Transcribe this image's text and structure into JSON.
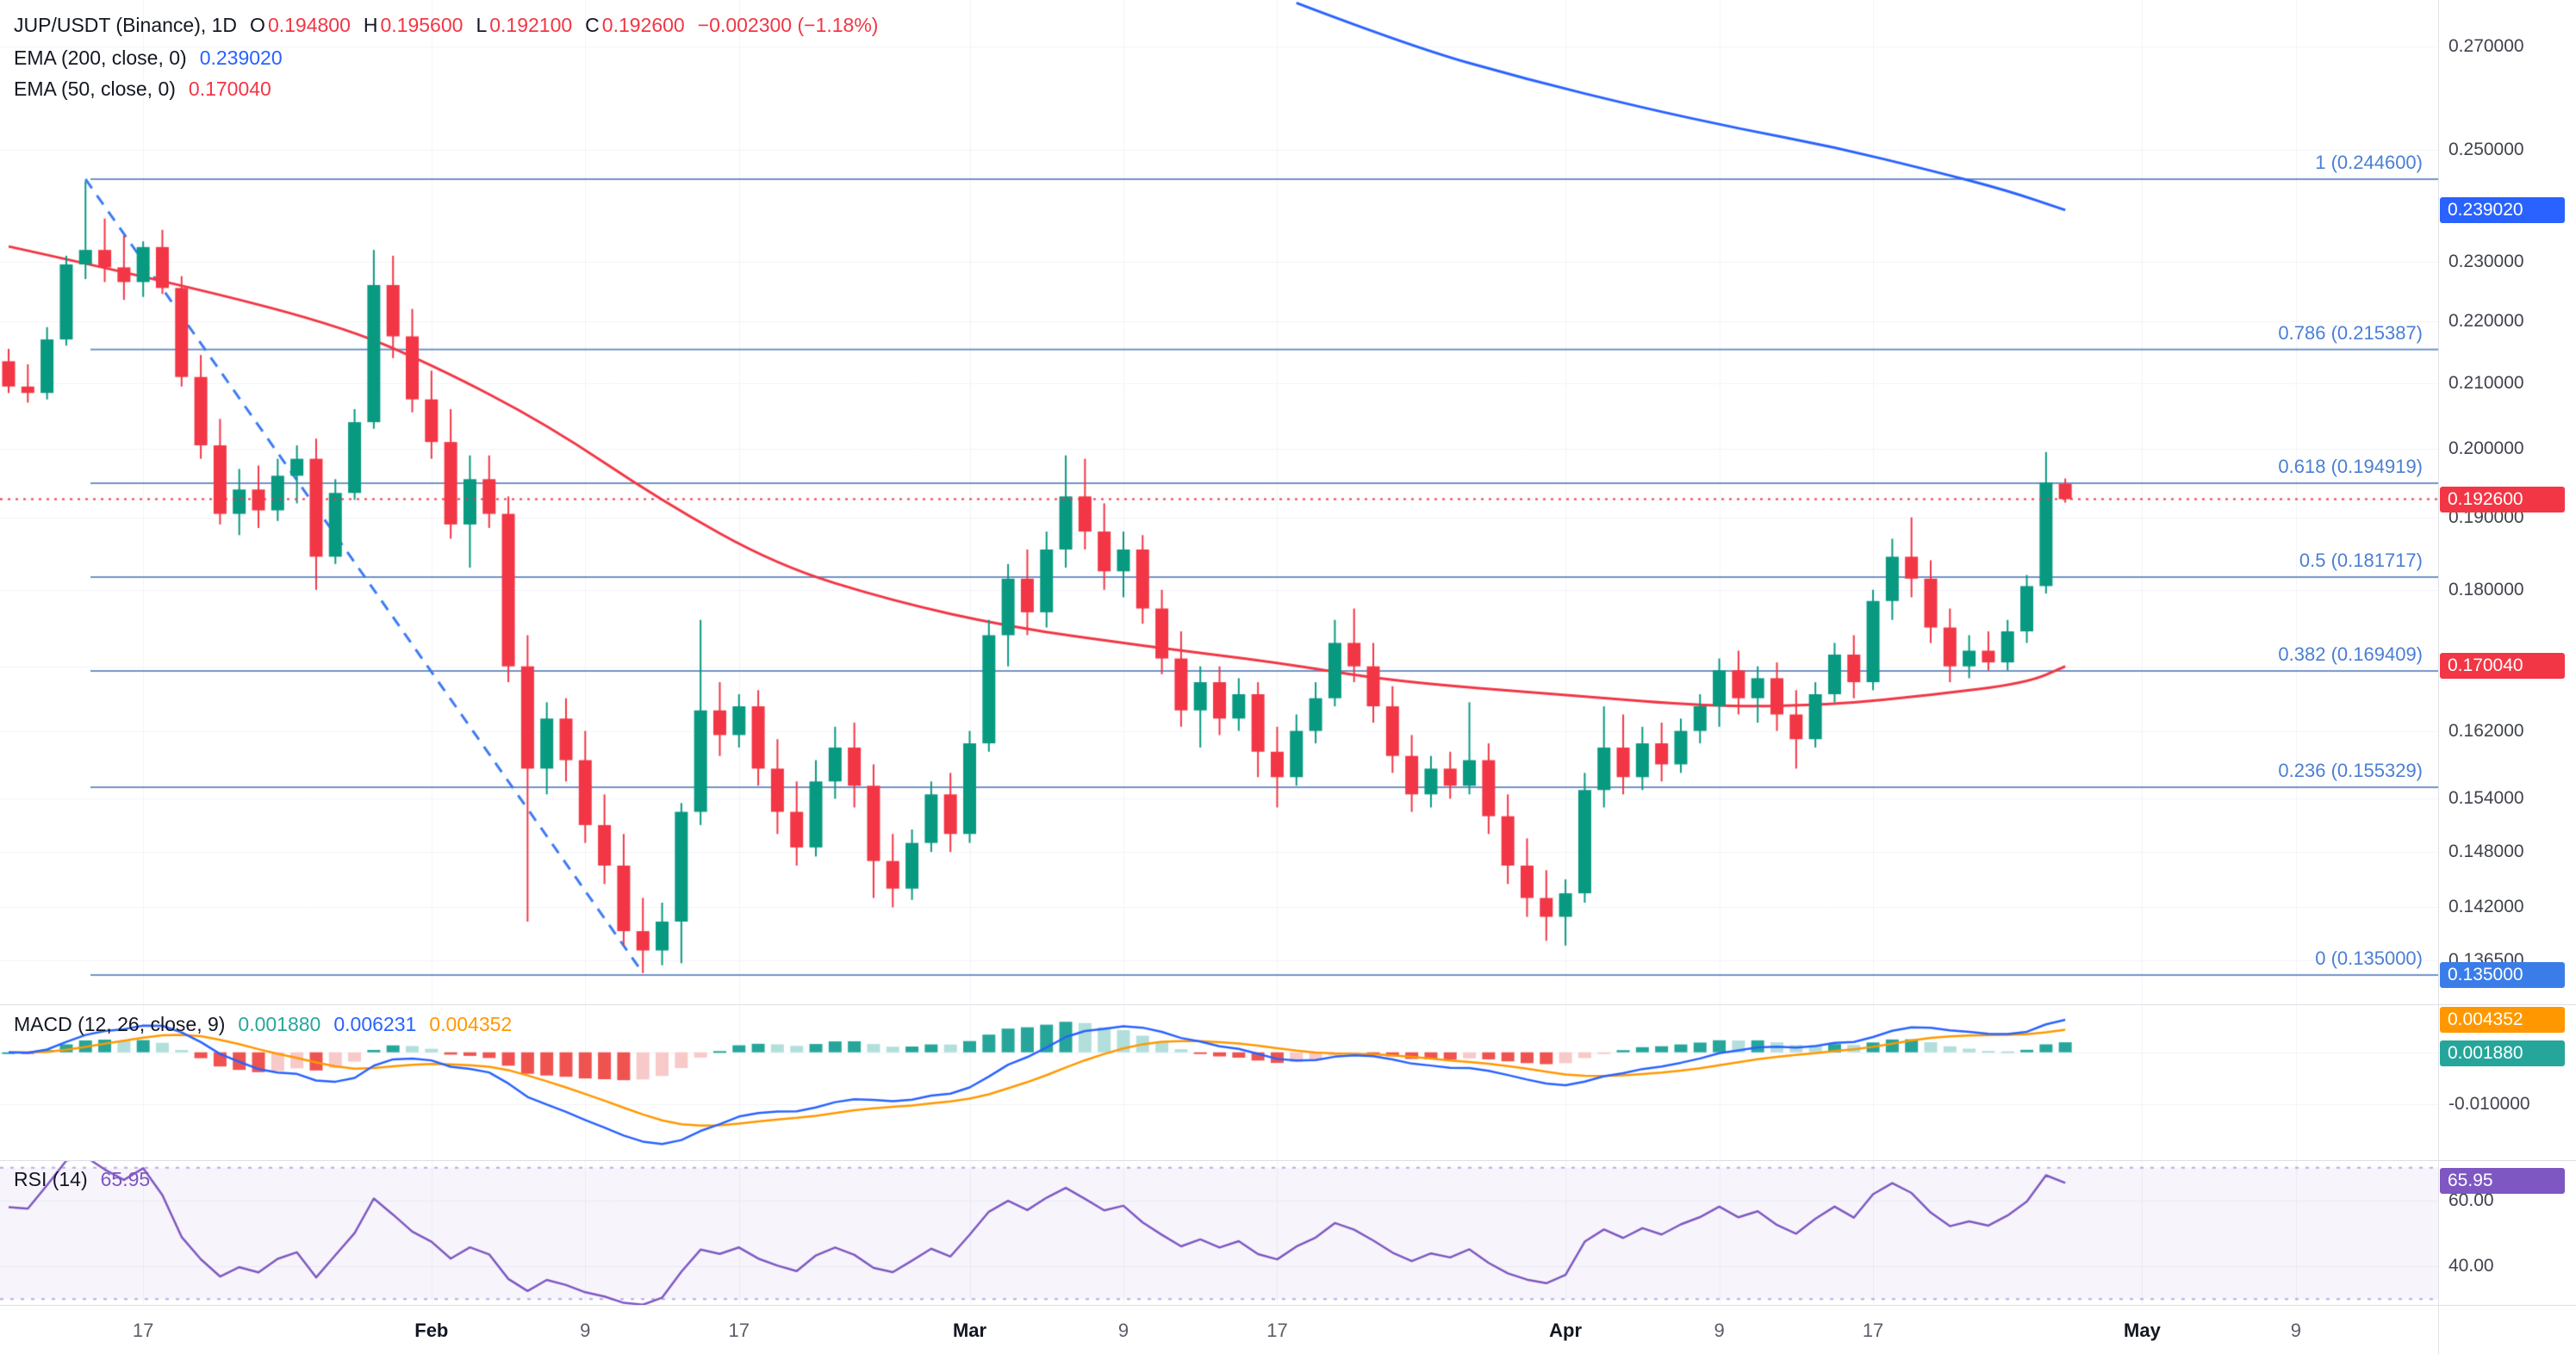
{
  "header": {
    "title": "JUP/USDT (Binance), 1D",
    "ohlc": {
      "o_label": "O",
      "o": "0.194800",
      "h_label": "H",
      "h": "0.195600",
      "l_label": "L",
      "l": "0.192100",
      "c_label": "C",
      "c": "0.192600",
      "change": "−0.002300 (−1.18%)"
    },
    "ema200_label": "EMA (200, close, 0)",
    "ema200_value": "0.239020",
    "ema50_label": "EMA (50, close, 0)",
    "ema50_value": "0.170040"
  },
  "macd_legend": {
    "label": "MACD (12, 26, close, 9)",
    "hist": "0.001880",
    "macd": "0.006231",
    "signal": "0.004352"
  },
  "rsi_legend": {
    "label": "RSI (14)",
    "value": "65.95"
  },
  "colors": {
    "up": "#089981",
    "down": "#f23645",
    "ema200": "#2962ff",
    "ema50": "#f23645",
    "fib": "#7193c7",
    "fib_label": "#4a7fd4",
    "trendline": "#3d7bf0",
    "macd_line": "#2962ff",
    "signal_line": "#ff9800",
    "hist_up": "#26a69a",
    "hist_up_weak": "#b2dfdb",
    "hist_down": "#ef5350",
    "hist_down_weak": "#f8c9c9",
    "rsi": "#7e57c2",
    "rsi_band_fill": "rgba(126,87,194,0.06)",
    "rsi_band_line": "rgba(126,87,194,0.5)",
    "grid": "#f0f3fa"
  },
  "chart_data": {
    "type": "candlestick",
    "symbol": "JUP/USDT",
    "exchange": "Binance",
    "interval": "1D",
    "ohlc": [
      [
        0.2135,
        0.2155,
        0.2085,
        0.2095
      ],
      [
        0.2095,
        0.213,
        0.207,
        0.2085
      ],
      [
        0.2085,
        0.219,
        0.2075,
        0.217
      ],
      [
        0.217,
        0.231,
        0.216,
        0.2295
      ],
      [
        0.2295,
        0.2442,
        0.227,
        0.232
      ],
      [
        0.232,
        0.2375,
        0.2265,
        0.229
      ],
      [
        0.229,
        0.2345,
        0.2235,
        0.2265
      ],
      [
        0.2265,
        0.2335,
        0.224,
        0.2325
      ],
      [
        0.2325,
        0.2355,
        0.2245,
        0.2255
      ],
      [
        0.2255,
        0.2275,
        0.2095,
        0.211
      ],
      [
        0.211,
        0.2145,
        0.1985,
        0.2005
      ],
      [
        0.2005,
        0.2045,
        0.189,
        0.1905
      ],
      [
        0.1905,
        0.197,
        0.1875,
        0.194
      ],
      [
        0.194,
        0.1975,
        0.1885,
        0.191
      ],
      [
        0.191,
        0.1985,
        0.1895,
        0.196
      ],
      [
        0.196,
        0.2005,
        0.192,
        0.1985
      ],
      [
        0.1985,
        0.2015,
        0.18,
        0.1845
      ],
      [
        0.1845,
        0.1955,
        0.1835,
        0.1935
      ],
      [
        0.1935,
        0.206,
        0.1925,
        0.204
      ],
      [
        0.204,
        0.232,
        0.203,
        0.226
      ],
      [
        0.226,
        0.231,
        0.214,
        0.2175
      ],
      [
        0.2175,
        0.222,
        0.2055,
        0.2075
      ],
      [
        0.2075,
        0.212,
        0.1985,
        0.201
      ],
      [
        0.201,
        0.206,
        0.187,
        0.189
      ],
      [
        0.189,
        0.199,
        0.183,
        0.1955
      ],
      [
        0.1955,
        0.199,
        0.1885,
        0.1905
      ],
      [
        0.1905,
        0.193,
        0.168,
        0.17
      ],
      [
        0.17,
        0.174,
        0.1405,
        0.1575
      ],
      [
        0.1575,
        0.1655,
        0.1545,
        0.1635
      ],
      [
        0.1635,
        0.166,
        0.156,
        0.1585
      ],
      [
        0.1585,
        0.162,
        0.149,
        0.151
      ],
      [
        0.151,
        0.1545,
        0.1445,
        0.1465
      ],
      [
        0.1465,
        0.15,
        0.138,
        0.1395
      ],
      [
        0.1395,
        0.143,
        0.1352,
        0.1375
      ],
      [
        0.1375,
        0.1425,
        0.136,
        0.1405
      ],
      [
        0.1405,
        0.1535,
        0.1362,
        0.1525
      ],
      [
        0.1525,
        0.176,
        0.151,
        0.1645
      ],
      [
        0.1645,
        0.168,
        0.159,
        0.1615
      ],
      [
        0.1615,
        0.1665,
        0.16,
        0.165
      ],
      [
        0.165,
        0.167,
        0.1555,
        0.1575
      ],
      [
        0.1575,
        0.161,
        0.15,
        0.1525
      ],
      [
        0.1525,
        0.156,
        0.1465,
        0.1485
      ],
      [
        0.1485,
        0.1585,
        0.1475,
        0.156
      ],
      [
        0.156,
        0.1625,
        0.154,
        0.16
      ],
      [
        0.16,
        0.163,
        0.153,
        0.1555
      ],
      [
        0.1555,
        0.158,
        0.143,
        0.147
      ],
      [
        0.147,
        0.15,
        0.142,
        0.144
      ],
      [
        0.144,
        0.1505,
        0.1428,
        0.149
      ],
      [
        0.149,
        0.156,
        0.148,
        0.1545
      ],
      [
        0.1545,
        0.157,
        0.148,
        0.15
      ],
      [
        0.15,
        0.162,
        0.149,
        0.1605
      ],
      [
        0.1605,
        0.176,
        0.1595,
        0.174
      ],
      [
        0.174,
        0.1835,
        0.17,
        0.1815
      ],
      [
        0.1815,
        0.1855,
        0.174,
        0.177
      ],
      [
        0.177,
        0.188,
        0.175,
        0.1855
      ],
      [
        0.1855,
        0.199,
        0.183,
        0.193
      ],
      [
        0.193,
        0.1985,
        0.1855,
        0.188
      ],
      [
        0.188,
        0.192,
        0.18,
        0.1825
      ],
      [
        0.1825,
        0.188,
        0.179,
        0.1855
      ],
      [
        0.1855,
        0.1875,
        0.1755,
        0.1775
      ],
      [
        0.1775,
        0.18,
        0.169,
        0.171
      ],
      [
        0.171,
        0.1745,
        0.1625,
        0.1645
      ],
      [
        0.1645,
        0.17,
        0.16,
        0.168
      ],
      [
        0.168,
        0.17,
        0.1615,
        0.1635
      ],
      [
        0.1635,
        0.1685,
        0.162,
        0.1665
      ],
      [
        0.1665,
        0.168,
        0.1565,
        0.1595
      ],
      [
        0.1595,
        0.1625,
        0.153,
        0.1565
      ],
      [
        0.1565,
        0.164,
        0.1555,
        0.162
      ],
      [
        0.162,
        0.168,
        0.1605,
        0.166
      ],
      [
        0.166,
        0.176,
        0.165,
        0.173
      ],
      [
        0.173,
        0.1775,
        0.168,
        0.17
      ],
      [
        0.17,
        0.173,
        0.163,
        0.165
      ],
      [
        0.165,
        0.1675,
        0.157,
        0.159
      ],
      [
        0.159,
        0.1615,
        0.1525,
        0.1545
      ],
      [
        0.1545,
        0.159,
        0.153,
        0.1575
      ],
      [
        0.1575,
        0.1595,
        0.154,
        0.1555
      ],
      [
        0.1555,
        0.1655,
        0.1545,
        0.1585
      ],
      [
        0.1585,
        0.1605,
        0.15,
        0.152
      ],
      [
        0.152,
        0.1545,
        0.1445,
        0.1465
      ],
      [
        0.1465,
        0.1495,
        0.141,
        0.143
      ],
      [
        0.143,
        0.146,
        0.1385,
        0.141
      ],
      [
        0.141,
        0.145,
        0.138,
        0.1435
      ],
      [
        0.1435,
        0.157,
        0.1425,
        0.155
      ],
      [
        0.155,
        0.165,
        0.153,
        0.16
      ],
      [
        0.16,
        0.164,
        0.1545,
        0.1565
      ],
      [
        0.1565,
        0.1625,
        0.155,
        0.1605
      ],
      [
        0.1605,
        0.163,
        0.156,
        0.158
      ],
      [
        0.158,
        0.1635,
        0.157,
        0.162
      ],
      [
        0.162,
        0.1665,
        0.1605,
        0.165
      ],
      [
        0.165,
        0.171,
        0.1625,
        0.1695
      ],
      [
        0.1695,
        0.172,
        0.164,
        0.166
      ],
      [
        0.166,
        0.17,
        0.163,
        0.1685
      ],
      [
        0.1685,
        0.1705,
        0.162,
        0.164
      ],
      [
        0.164,
        0.167,
        0.1575,
        0.161
      ],
      [
        0.161,
        0.168,
        0.16,
        0.1665
      ],
      [
        0.1665,
        0.173,
        0.1655,
        0.1715
      ],
      [
        0.1715,
        0.174,
        0.166,
        0.168
      ],
      [
        0.168,
        0.18,
        0.167,
        0.1785
      ],
      [
        0.1785,
        0.187,
        0.176,
        0.1845
      ],
      [
        0.1845,
        0.19,
        0.179,
        0.1815
      ],
      [
        0.1815,
        0.184,
        0.173,
        0.175
      ],
      [
        0.175,
        0.1775,
        0.168,
        0.17
      ],
      [
        0.17,
        0.174,
        0.1685,
        0.172
      ],
      [
        0.172,
        0.1745,
        0.1695,
        0.1705
      ],
      [
        0.1705,
        0.176,
        0.1695,
        0.1745
      ],
      [
        0.1745,
        0.182,
        0.173,
        0.1805
      ],
      [
        0.1805,
        0.1995,
        0.1795,
        0.195
      ],
      [
        0.1948,
        0.1956,
        0.1921,
        0.1926
      ]
    ],
    "current_price": 0.1926,
    "price_scale": {
      "type": "log",
      "min": 0.132,
      "max": 0.2796,
      "ticks": [
        {
          "v": 0.27,
          "label": "0.270000"
        },
        {
          "v": 0.25,
          "label": "0.250000"
        },
        {
          "v": 0.23,
          "label": "0.230000"
        },
        {
          "v": 0.22,
          "label": "0.220000"
        },
        {
          "v": 0.21,
          "label": "0.210000"
        },
        {
          "v": 0.2,
          "label": "0.200000"
        },
        {
          "v": 0.19,
          "label": "0.190000"
        },
        {
          "v": 0.18,
          "label": "0.180000"
        },
        {
          "v": 0.17,
          "label": "0.170000"
        },
        {
          "v": 0.162,
          "label": "0.162000"
        },
        {
          "v": 0.154,
          "label": "0.154000"
        },
        {
          "v": 0.148,
          "label": "0.148000"
        },
        {
          "v": 0.142,
          "label": "0.142000"
        },
        {
          "v": 0.1365,
          "label": "0.136500"
        }
      ]
    },
    "price_badges": [
      {
        "label": "0.239020",
        "v": 0.23902,
        "bg": "#2962ff"
      },
      {
        "label": "0.192600",
        "v": 0.1926,
        "bg": "#f23645"
      },
      {
        "label": "0.170040",
        "v": 0.17004,
        "bg": "#f23645"
      },
      {
        "label": "0.135000",
        "v": 0.135,
        "bg": "#3b7de8"
      }
    ],
    "fib_levels": [
      {
        "label": "1 (0.244600)",
        "v": 0.2446
      },
      {
        "label": "0.786 (0.215387)",
        "v": 0.215387
      },
      {
        "label": "0.618 (0.194919)",
        "v": 0.194919
      },
      {
        "label": "0.5 (0.181717)",
        "v": 0.181717
      },
      {
        "label": "0.382 (0.169409)",
        "v": 0.169409
      },
      {
        "label": "0.236 (0.155329)",
        "v": 0.155329
      },
      {
        "label": "0 (0.135000)",
        "v": 0.135
      }
    ],
    "trendline": {
      "from_i": 4,
      "from_p": 0.2446,
      "to_i": 33,
      "to_p": 0.1352
    },
    "ema50_points": [
      [
        0,
        0.2326
      ],
      [
        8,
        0.2268
      ],
      [
        17,
        0.2195
      ],
      [
        22,
        0.213
      ],
      [
        28,
        0.2037
      ],
      [
        34,
        0.1923
      ],
      [
        40,
        0.1833
      ],
      [
        46,
        0.1785
      ],
      [
        52,
        0.1751
      ],
      [
        59,
        0.1726
      ],
      [
        66,
        0.1705
      ],
      [
        72,
        0.1681
      ],
      [
        81,
        0.1664
      ],
      [
        89,
        0.1649
      ],
      [
        95,
        0.1652
      ],
      [
        100,
        0.1664
      ],
      [
        105,
        0.1679
      ],
      [
        107,
        0.17
      ]
    ],
    "ema200_points": [
      [
        67,
        0.279
      ],
      [
        73,
        0.27
      ],
      [
        79,
        0.2635
      ],
      [
        85,
        0.258
      ],
      [
        90,
        0.254
      ],
      [
        95,
        0.2505
      ],
      [
        100,
        0.2462
      ],
      [
        104,
        0.2425
      ],
      [
        107,
        0.239
      ]
    ],
    "time_ticks": [
      {
        "i": 7,
        "label": "17",
        "m": 0
      },
      {
        "i": 22,
        "label": "Feb",
        "m": 1
      },
      {
        "i": 30,
        "label": "9",
        "m": 0
      },
      {
        "i": 38,
        "label": "17",
        "m": 0
      },
      {
        "i": 50,
        "label": "Mar",
        "m": 1
      },
      {
        "i": 58,
        "label": "9",
        "m": 0
      },
      {
        "i": 66,
        "label": "17",
        "m": 0
      },
      {
        "i": 81,
        "label": "Apr",
        "m": 1
      },
      {
        "i": 89,
        "label": "9",
        "m": 0
      },
      {
        "i": 97,
        "label": "17",
        "m": 0
      },
      {
        "i": 111,
        "label": "May",
        "m": 1
      },
      {
        "i": 119,
        "label": "9",
        "m": 0
      }
    ],
    "macd_scale": {
      "params": [
        12,
        26,
        9
      ],
      "min": -0.021,
      "max": 0.0091,
      "ticks": [
        {
          "v": 0,
          "label": "0.000000"
        },
        {
          "v": -0.01,
          "label": "-0.010000"
        }
      ],
      "badges": [
        {
          "label": "0.004352",
          "v": 0.004352,
          "bg": "#ff9800"
        },
        {
          "label": "0.001880",
          "v": 0.00188,
          "bg": "#26a69a"
        }
      ]
    },
    "rsi_scale": {
      "period": 14,
      "min": 28,
      "max": 72,
      "bands": [
        70,
        30
      ],
      "ticks": [
        {
          "v": 60,
          "label": "60.00"
        },
        {
          "v": 40,
          "label": "40.00"
        }
      ],
      "badge": {
        "label": "65.95",
        "v": 65.95,
        "bg": "#7e57c2"
      }
    }
  }
}
